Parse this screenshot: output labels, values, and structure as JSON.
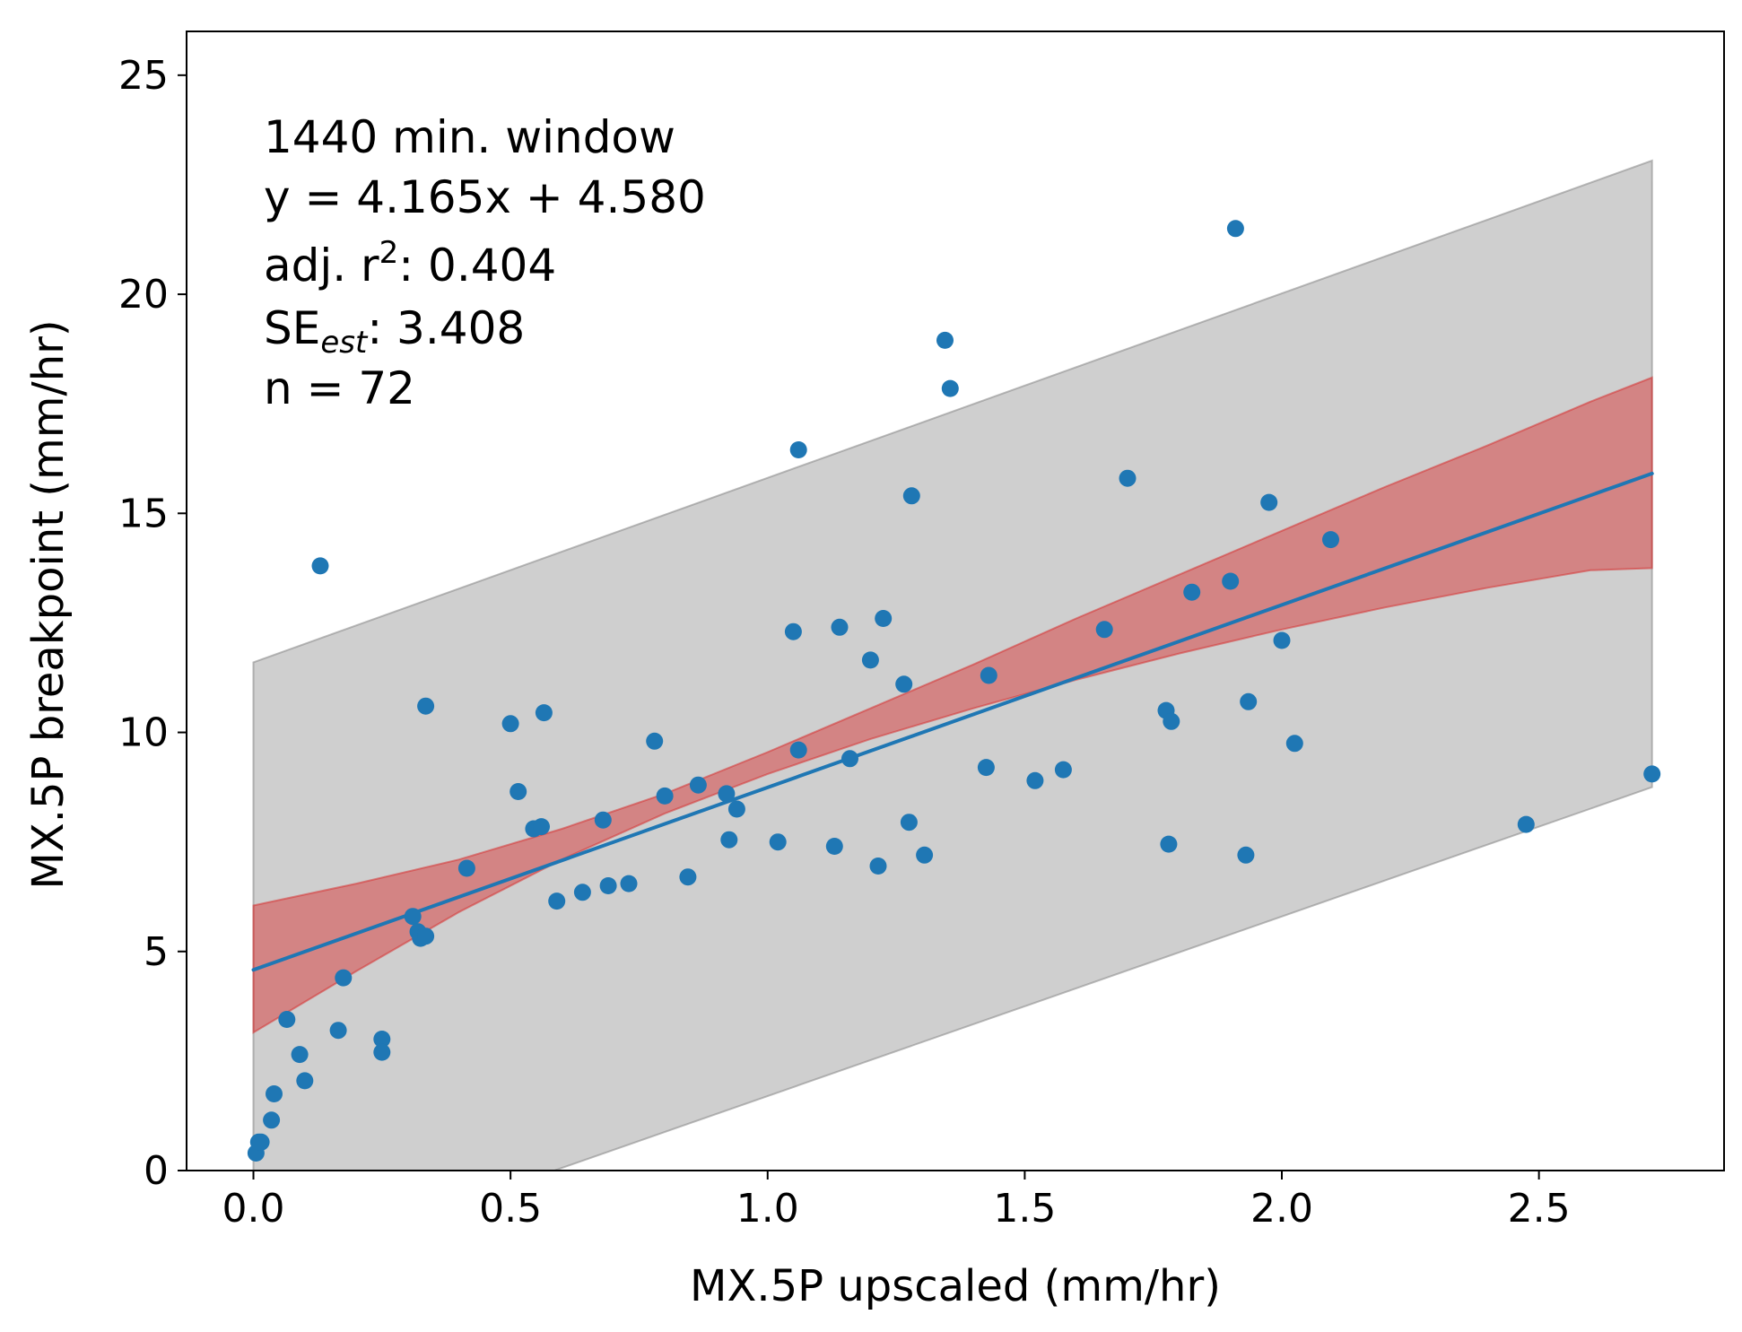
{
  "chart_data": {
    "type": "scatter",
    "xlabel": "MX.5P upscaled (mm/hr)",
    "ylabel": "MX.5P breakpoint (mm/hr)",
    "xlim": [
      -0.13,
      2.86
    ],
    "ylim": [
      0,
      26
    ],
    "x_ticks": [
      0.0,
      0.5,
      1.0,
      1.5,
      2.0,
      2.5
    ],
    "x_tick_labels": [
      "0.0",
      "0.5",
      "1.0",
      "1.5",
      "2.0",
      "2.5"
    ],
    "y_ticks": [
      0,
      5,
      10,
      15,
      20,
      25
    ],
    "y_tick_labels": [
      "0",
      "5",
      "10",
      "15",
      "20",
      "25"
    ],
    "grid": false,
    "annotation": {
      "window": "1440 min. window",
      "equation": "y = 4.165x + 4.580",
      "r2_prefix": "adj. r",
      "r2_sup": "2",
      "r2_value": ": 0.404",
      "se_prefix": "SE",
      "se_sub": "est",
      "se_value": ": 3.408",
      "n": "n = 72"
    },
    "regression": {
      "slope": 4.165,
      "intercept": 4.58,
      "x_range": [
        0.0,
        2.72
      ],
      "color": "#1f77b4"
    },
    "confidence_band": {
      "color": "#d62728",
      "opacity": 0.45,
      "lower": [
        [
          0.0,
          3.15
        ],
        [
          0.2,
          4.55
        ],
        [
          0.4,
          5.9
        ],
        [
          0.6,
          7.1
        ],
        [
          0.8,
          8.15
        ],
        [
          1.0,
          9.05
        ],
        [
          1.2,
          9.85
        ],
        [
          1.4,
          10.55
        ],
        [
          1.6,
          11.2
        ],
        [
          1.8,
          11.8
        ],
        [
          2.0,
          12.35
        ],
        [
          2.2,
          12.85
        ],
        [
          2.4,
          13.3
        ],
        [
          2.6,
          13.7
        ],
        [
          2.72,
          13.75
        ]
      ],
      "upper": [
        [
          0.0,
          6.05
        ],
        [
          0.2,
          6.55
        ],
        [
          0.4,
          7.1
        ],
        [
          0.6,
          7.8
        ],
        [
          0.8,
          8.6
        ],
        [
          1.0,
          9.55
        ],
        [
          1.2,
          10.55
        ],
        [
          1.4,
          11.55
        ],
        [
          1.6,
          12.6
        ],
        [
          1.8,
          13.6
        ],
        [
          2.0,
          14.6
        ],
        [
          2.2,
          15.6
        ],
        [
          2.4,
          16.55
        ],
        [
          2.6,
          17.55
        ],
        [
          2.72,
          18.1
        ]
      ]
    },
    "prediction_band": {
      "color": "#a0a0a0",
      "opacity": 0.5,
      "lower": [
        [
          0.0,
          0.0
        ],
        [
          0.0,
          -2.4
        ],
        [
          2.72,
          8.75
        ]
      ],
      "upper": [
        [
          0.0,
          11.6
        ],
        [
          2.72,
          23.05
        ]
      ]
    },
    "points": {
      "color": "#1f77b4",
      "x": [
        0.005,
        0.01,
        0.015,
        0.035,
        0.04,
        0.065,
        0.09,
        0.1,
        0.13,
        0.165,
        0.175,
        0.25,
        0.25,
        0.31,
        0.32,
        0.325,
        0.335,
        0.335,
        0.415,
        0.5,
        0.515,
        0.545,
        0.56,
        0.565,
        0.59,
        0.64,
        0.68,
        0.69,
        0.73,
        0.78,
        0.8,
        0.845,
        0.865,
        0.92,
        0.925,
        0.94,
        1.02,
        1.05,
        1.06,
        1.06,
        1.13,
        1.14,
        1.16,
        1.2,
        1.215,
        1.225,
        1.265,
        1.275,
        1.28,
        1.305,
        1.345,
        1.355,
        1.425,
        1.43,
        1.52,
        1.575,
        1.655,
        1.7,
        1.775,
        1.78,
        1.785,
        1.825,
        1.9,
        1.91,
        1.93,
        1.935,
        1.975,
        2.0,
        2.025,
        2.095,
        2.475,
        2.72
      ],
      "y": [
        0.4,
        0.65,
        0.65,
        1.15,
        1.75,
        3.45,
        2.65,
        2.05,
        13.8,
        3.2,
        4.4,
        3.0,
        2.7,
        5.8,
        5.45,
        5.3,
        5.35,
        10.6,
        6.9,
        10.2,
        8.65,
        7.8,
        7.85,
        10.45,
        6.15,
        6.35,
        8.0,
        6.5,
        6.55,
        9.8,
        8.55,
        6.7,
        8.8,
        8.6,
        7.55,
        8.25,
        7.5,
        12.3,
        16.45,
        9.6,
        7.4,
        12.4,
        9.4,
        11.65,
        6.95,
        12.6,
        11.1,
        7.95,
        15.4,
        7.2,
        18.95,
        17.85,
        9.2,
        11.3,
        8.9,
        9.15,
        12.35,
        15.8,
        10.5,
        7.45,
        10.25,
        13.2,
        13.45,
        21.5,
        7.2,
        10.7,
        15.25,
        12.1,
        9.75,
        14.4,
        7.9,
        9.05
      ]
    }
  }
}
